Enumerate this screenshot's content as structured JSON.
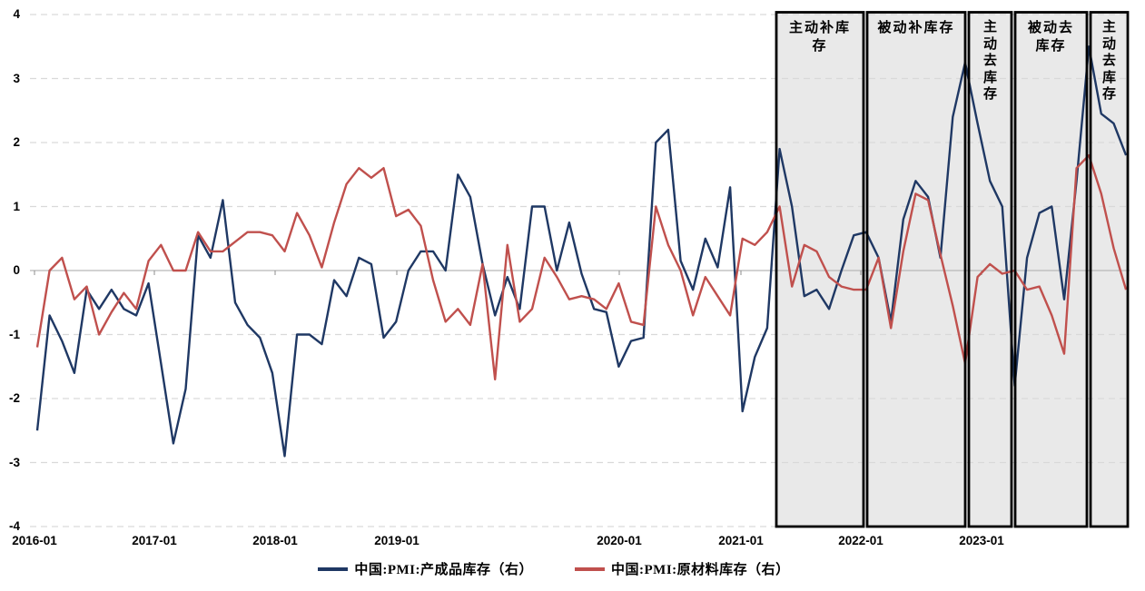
{
  "chart": {
    "y_axis": {
      "ticks": [
        "4",
        "3",
        "2",
        "1",
        "0",
        "-1",
        "-2",
        "-3",
        "-4"
      ]
    },
    "x_axis": {
      "ticks": [
        "2016-01",
        "2017-01",
        "2018-01",
        "2019-01",
        "2020-01",
        "2021-01",
        "2022-01",
        "2023-01"
      ]
    },
    "legend": {
      "items": [
        {
          "label": "中国:PMI:产成品库存（右）",
          "color": "#1f3864"
        },
        {
          "label": "中国:PMI:原材料库存（右）",
          "color": "#c0504d"
        }
      ]
    },
    "phases": [
      {
        "label": "主动补库存",
        "orientation": "horizontal"
      },
      {
        "label": "被动补库存",
        "orientation": "horizontal"
      },
      {
        "label": "主动去库存",
        "orientation": "vertical"
      },
      {
        "label": "被动去库存",
        "orientation": "horizontal"
      },
      {
        "label": "主动去库存",
        "orientation": "vertical"
      }
    ],
    "colors": {
      "grid": "#d9d9d9",
      "zero_line": "#b7b7b7",
      "tick": "#8c8c8c",
      "box_fill": "#e9e9e9",
      "box_border": "#000000",
      "series_finished_goods": "#1f3864",
      "series_raw_materials": "#c0504d"
    }
  },
  "chart_data": {
    "type": "line",
    "title": "",
    "xlabel": "",
    "ylabel": "",
    "x_start": "2016-01",
    "x_end": "2023-05",
    "x_freq": "monthly",
    "ylim": [
      -4,
      4
    ],
    "grid": "horizontal-dashed",
    "legend_position": "bottom",
    "x_tick_labels": [
      "2016-01",
      "2017-01",
      "2018-01",
      "2019-01",
      "2020-01",
      "2021-01",
      "2022-01",
      "2023-01"
    ],
    "series": [
      {
        "name": "中国:PMI:产成品库存（右）",
        "color": "#1f3864",
        "values": [
          -2.5,
          -0.7,
          -1.1,
          -1.6,
          -0.3,
          -0.6,
          -0.3,
          -0.6,
          -0.7,
          -0.2,
          -1.45,
          -2.7,
          -1.85,
          0.55,
          0.2,
          1.1,
          -0.5,
          -0.85,
          -1.05,
          -1.6,
          -2.9,
          -1.0,
          -1.0,
          -1.15,
          -0.15,
          -0.4,
          0.2,
          0.1,
          -1.05,
          -0.8,
          0.0,
          0.3,
          0.3,
          0.0,
          1.5,
          1.15,
          0.1,
          -0.7,
          -0.1,
          -0.6,
          1.0,
          1.0,
          0.0,
          0.75,
          -0.05,
          -0.6,
          -0.65,
          -1.5,
          -1.1,
          -1.05,
          2.0,
          2.2,
          0.15,
          -0.3,
          0.5,
          0.05,
          1.3,
          -2.2,
          -1.35,
          -0.9,
          1.9,
          1.0,
          -0.4,
          -0.3,
          -0.6,
          0.0,
          0.55,
          0.6,
          0.2,
          -0.8,
          0.8,
          1.4,
          1.15,
          0.2,
          2.4,
          3.25,
          2.3,
          1.4,
          1.0,
          -1.8,
          0.2,
          0.9,
          1.0,
          -0.45,
          1.4,
          3.5,
          2.45,
          2.3,
          1.8
        ]
      },
      {
        "name": "中国:PMI:原材料库存（右）",
        "color": "#c0504d",
        "values": [
          -1.2,
          0.0,
          0.2,
          -0.45,
          -0.25,
          -1.0,
          -0.65,
          -0.35,
          -0.6,
          0.15,
          0.4,
          0.0,
          0.0,
          0.6,
          0.3,
          0.3,
          0.45,
          0.6,
          0.6,
          0.55,
          0.3,
          0.9,
          0.55,
          0.05,
          0.75,
          1.35,
          1.6,
          1.45,
          1.6,
          0.85,
          0.95,
          0.7,
          -0.15,
          -0.8,
          -0.6,
          -0.85,
          0.1,
          -1.7,
          0.4,
          -0.8,
          -0.6,
          0.2,
          -0.1,
          -0.45,
          -0.4,
          -0.45,
          -0.6,
          -0.2,
          -0.8,
          -0.85,
          1.0,
          0.4,
          0.0,
          -0.7,
          -0.1,
          -0.4,
          -0.7,
          0.5,
          0.4,
          0.6,
          1.0,
          -0.25,
          0.4,
          0.3,
          -0.1,
          -0.25,
          -0.3,
          -0.3,
          0.2,
          -0.9,
          0.3,
          1.2,
          1.1,
          0.25,
          -0.55,
          -1.45,
          -0.1,
          0.1,
          -0.05,
          0.0,
          -0.3,
          -0.25,
          -0.7,
          -1.3,
          1.6,
          1.8,
          1.2,
          0.35,
          -0.3
        ]
      }
    ],
    "annotations": [
      {
        "label": "主动补库存",
        "from": "2021-01",
        "to": "2021-08"
      },
      {
        "label": "被动补库存",
        "from": "2021-08",
        "to": "2022-04"
      },
      {
        "label": "主动去库存",
        "from": "2022-04",
        "to": "2022-08"
      },
      {
        "label": "被动去库存",
        "from": "2022-08",
        "to": "2023-02"
      },
      {
        "label": "主动去库存",
        "from": "2023-02",
        "to": "2023-05"
      }
    ]
  }
}
